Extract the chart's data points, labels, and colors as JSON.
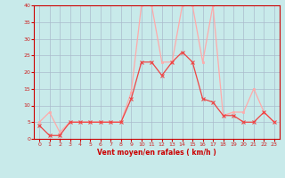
{
  "x": [
    0,
    1,
    2,
    3,
    4,
    5,
    6,
    7,
    8,
    9,
    10,
    11,
    12,
    13,
    14,
    15,
    16,
    17,
    18,
    19,
    20,
    21,
    22,
    23
  ],
  "rafales_y": [
    5,
    8,
    2,
    5,
    5,
    5,
    5,
    5,
    5,
    14,
    40,
    40,
    23,
    23,
    40,
    40,
    23,
    40,
    7,
    8,
    8,
    15,
    8,
    5
  ],
  "moyen_y": [
    4,
    1,
    1,
    5,
    5,
    5,
    5,
    5,
    5,
    12,
    23,
    23,
    19,
    23,
    26,
    23,
    12,
    11,
    7,
    7,
    5,
    5,
    8,
    5
  ],
  "bg_color": "#c8eaea",
  "grid_color": "#aabccc",
  "line_rafales_color": "#ffaaaa",
  "line_moyen_color": "#ee4444",
  "xlabel": "Vent moyen/en rafales ( km/h )",
  "xlim": [
    -0.5,
    23.5
  ],
  "ylim": [
    0,
    40
  ],
  "yticks": [
    0,
    5,
    10,
    15,
    20,
    25,
    30,
    35,
    40
  ],
  "xticks": [
    0,
    1,
    2,
    3,
    4,
    5,
    6,
    7,
    8,
    9,
    10,
    11,
    12,
    13,
    14,
    15,
    16,
    17,
    18,
    19,
    20,
    21,
    22,
    23
  ]
}
